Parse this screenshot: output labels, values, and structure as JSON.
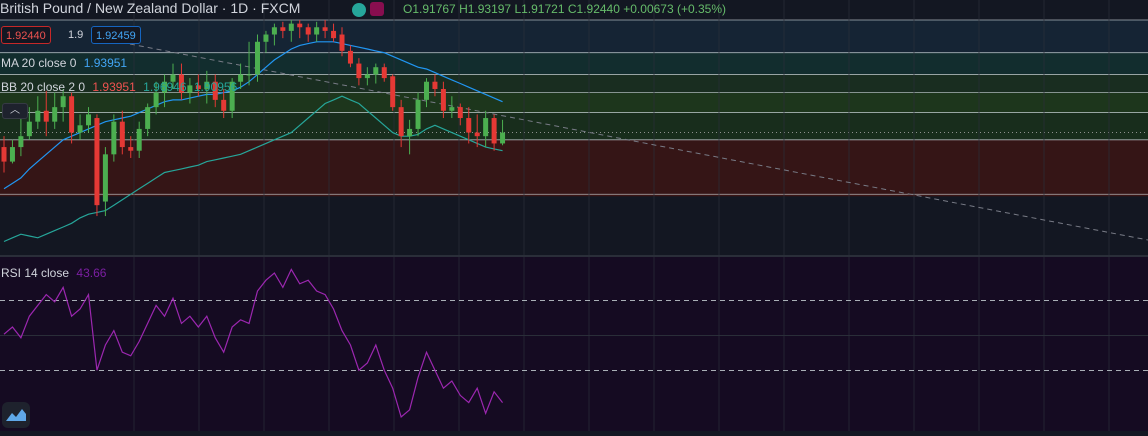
{
  "header": {
    "symbol": "British Pound / New Zealand Dollar",
    "interval": "1D",
    "exchange": "FXCM",
    "ohlc": {
      "o": "O1.91767",
      "h": "H1.93197",
      "l": "L1.91721",
      "c": "C1.92440",
      "change": "+0.00673 (+0.35%)"
    },
    "bid": "1.92440",
    "spread": "1.9",
    "ask": "1.92459"
  },
  "indicators": {
    "ma": {
      "label": "MA 20 close 0",
      "value": "1.93951"
    },
    "bb": {
      "label": "BB 20 close 2 0",
      "basis": "1.93951",
      "upper": "1.96946",
      "lower": "1.90956"
    },
    "rsi": {
      "label": "RSI 14 close",
      "value": "43.66"
    }
  },
  "icons": {
    "collapse": "chevron-up-icon",
    "logo": "tradingview-logo-icon"
  },
  "colors": {
    "up": "#4caf50",
    "down": "#e53935",
    "ma": "#2196f3",
    "bb": "#26a69a",
    "rsi": "#9c27b0",
    "trend": "#787b86"
  },
  "chart_data": [
    {
      "type": "candlestick",
      "title": "British Pound / New Zealand Dollar",
      "ohlc": [
        [
          1.95,
          1.956,
          1.936,
          1.942
        ],
        [
          1.942,
          1.954,
          1.941,
          1.95
        ],
        [
          1.95,
          1.97,
          1.945,
          1.956
        ],
        [
          1.956,
          1.972,
          1.954,
          1.964
        ],
        [
          1.964,
          1.978,
          1.96,
          1.97
        ],
        [
          1.97,
          1.981,
          1.956,
          1.964
        ],
        [
          1.964,
          1.98,
          1.96,
          1.972
        ],
        [
          1.972,
          1.982,
          1.964,
          1.978
        ],
        [
          1.978,
          1.98,
          1.952,
          1.958
        ],
        [
          1.958,
          1.968,
          1.954,
          1.962
        ],
        [
          1.962,
          1.972,
          1.958,
          1.968
        ],
        [
          1.966,
          1.968,
          1.912,
          1.918
        ],
        [
          1.92,
          1.95,
          1.912,
          1.946
        ],
        [
          1.946,
          1.968,
          1.942,
          1.964
        ],
        [
          1.964,
          1.97,
          1.946,
          1.95
        ],
        [
          1.95,
          1.956,
          1.944,
          1.948
        ],
        [
          1.948,
          1.964,
          1.944,
          1.96
        ],
        [
          1.96,
          1.974,
          1.956,
          1.972
        ],
        [
          1.972,
          1.986,
          1.968,
          1.98
        ],
        [
          1.98,
          1.99,
          1.972,
          1.986
        ],
        [
          1.986,
          1.996,
          1.982,
          1.99
        ],
        [
          1.99,
          1.996,
          1.976,
          1.98
        ],
        [
          1.98,
          1.988,
          1.974,
          1.984
        ],
        [
          1.984,
          1.99,
          1.978,
          1.982
        ],
        [
          1.982,
          1.992,
          1.974,
          1.986
        ],
        [
          1.986,
          1.99,
          1.972,
          1.976
        ],
        [
          1.976,
          1.982,
          1.966,
          1.97
        ],
        [
          1.97,
          1.988,
          1.966,
          1.986
        ],
        [
          1.986,
          1.996,
          1.982,
          1.99
        ],
        [
          1.99,
          2.008,
          1.984,
          1.99
        ],
        [
          1.99,
          2.012,
          1.986,
          2.008
        ],
        [
          2.008,
          2.014,
          2.002,
          2.012
        ],
        [
          2.012,
          2.018,
          2.006,
          2.016
        ],
        [
          2.016,
          2.019,
          2.01,
          2.014
        ],
        [
          2.014,
          2.02,
          2.008,
          2.018
        ],
        [
          2.018,
          2.02,
          2.01,
          2.016
        ],
        [
          2.016,
          2.018,
          2.008,
          2.012
        ],
        [
          2.012,
          2.019,
          2.008,
          2.016
        ],
        [
          2.016,
          2.02,
          2.01,
          2.014
        ],
        [
          2.014,
          2.018,
          2.008,
          2.01
        ],
        [
          2.012,
          2.016,
          2.0,
          2.003
        ],
        [
          2.003,
          2.006,
          1.994,
          1.996
        ],
        [
          1.996,
          1.999,
          1.984,
          1.988
        ],
        [
          1.988,
          1.994,
          1.984,
          1.99
        ],
        [
          1.99,
          1.996,
          1.985,
          1.994
        ],
        [
          1.994,
          1.996,
          1.986,
          1.988
        ],
        [
          1.989,
          1.99,
          1.97,
          1.972
        ],
        [
          1.972,
          1.976,
          1.95,
          1.956
        ],
        [
          1.956,
          1.965,
          1.946,
          1.96
        ],
        [
          1.96,
          1.98,
          1.956,
          1.976
        ],
        [
          1.976,
          1.988,
          1.972,
          1.986
        ],
        [
          1.986,
          1.99,
          1.978,
          1.982
        ],
        [
          1.982,
          1.986,
          1.966,
          1.97
        ],
        [
          1.97,
          1.978,
          1.966,
          1.972
        ],
        [
          1.972,
          1.974,
          1.962,
          1.966
        ],
        [
          1.966,
          1.972,
          1.952,
          1.958
        ],
        [
          1.958,
          1.968,
          1.95,
          1.956
        ],
        [
          1.956,
          1.97,
          1.95,
          1.966
        ],
        [
          1.966,
          1.968,
          1.948,
          1.952
        ],
        [
          1.952,
          1.965,
          1.951,
          1.958
        ]
      ],
      "price_levels": [
        2.02,
        2.002,
        1.99,
        1.98,
        1.969,
        1.954,
        1.924
      ],
      "trendline": [
        [
          1.995,
          2.017
        ],
        [
          1.79,
          1.922
        ]
      ],
      "series_lines": [
        {
          "name": "MA 20 close 0",
          "values": [
            1.927,
            1.93,
            1.933,
            1.938,
            1.942,
            1.946,
            1.95,
            1.954,
            1.956,
            1.958,
            1.96,
            1.962,
            1.964,
            1.965,
            1.966,
            1.967,
            1.969,
            1.971,
            1.973,
            1.975,
            1.976,
            1.976,
            1.977,
            1.978,
            1.979,
            1.979,
            1.98,
            1.981,
            1.983,
            1.986,
            1.99,
            1.994,
            1.998,
            2.001,
            2.004,
            2.006,
            2.007,
            2.008,
            2.008,
            2.008,
            2.007,
            2.006,
            2.005,
            2.004,
            2.003,
            2.002,
            2.0,
            1.998,
            1.996,
            1.994,
            1.993,
            1.991,
            1.989,
            1.987,
            1.985,
            1.983,
            1.981,
            1.979,
            1.977,
            1.975
          ]
        },
        {
          "name": "BB 20 close 2 0",
          "values": [
            1.898,
            1.9,
            1.902,
            1.901,
            1.9,
            1.902,
            1.904,
            1.906,
            1.908,
            1.911,
            1.913,
            1.914,
            1.915,
            1.918,
            1.921,
            1.924,
            1.927,
            1.93,
            1.933,
            1.936,
            1.937,
            1.938,
            1.939,
            1.94,
            1.942,
            1.943,
            1.944,
            1.945,
            1.946,
            1.948,
            1.95,
            1.952,
            1.954,
            1.956,
            1.958,
            1.962,
            1.966,
            1.97,
            1.974,
            1.976,
            1.978,
            1.976,
            1.974,
            1.97,
            1.966,
            1.962,
            1.958,
            1.956,
            1.956,
            1.957,
            1.96,
            1.962,
            1.96,
            1.958,
            1.956,
            1.954,
            1.952,
            1.95,
            1.949,
            1.948
          ]
        }
      ]
    },
    {
      "type": "line",
      "title": "RSI 14 close",
      "ylim": [
        0,
        100
      ],
      "levels": [
        70,
        30
      ],
      "series": [
        {
          "name": "RSI 14 close",
          "values": [
            55,
            57,
            54,
            60,
            63,
            66,
            64,
            68,
            60,
            62,
            66,
            45,
            52,
            56,
            50,
            49,
            53,
            58,
            63,
            60,
            65,
            58,
            60,
            57,
            60,
            54,
            50,
            57,
            59,
            58,
            67,
            70,
            72,
            68,
            73,
            69,
            70,
            67,
            66,
            62,
            56,
            52,
            45,
            47,
            52,
            45,
            40,
            32,
            34,
            43,
            50,
            45,
            40,
            42,
            38,
            36,
            40,
            33,
            39,
            36
          ]
        }
      ]
    }
  ]
}
